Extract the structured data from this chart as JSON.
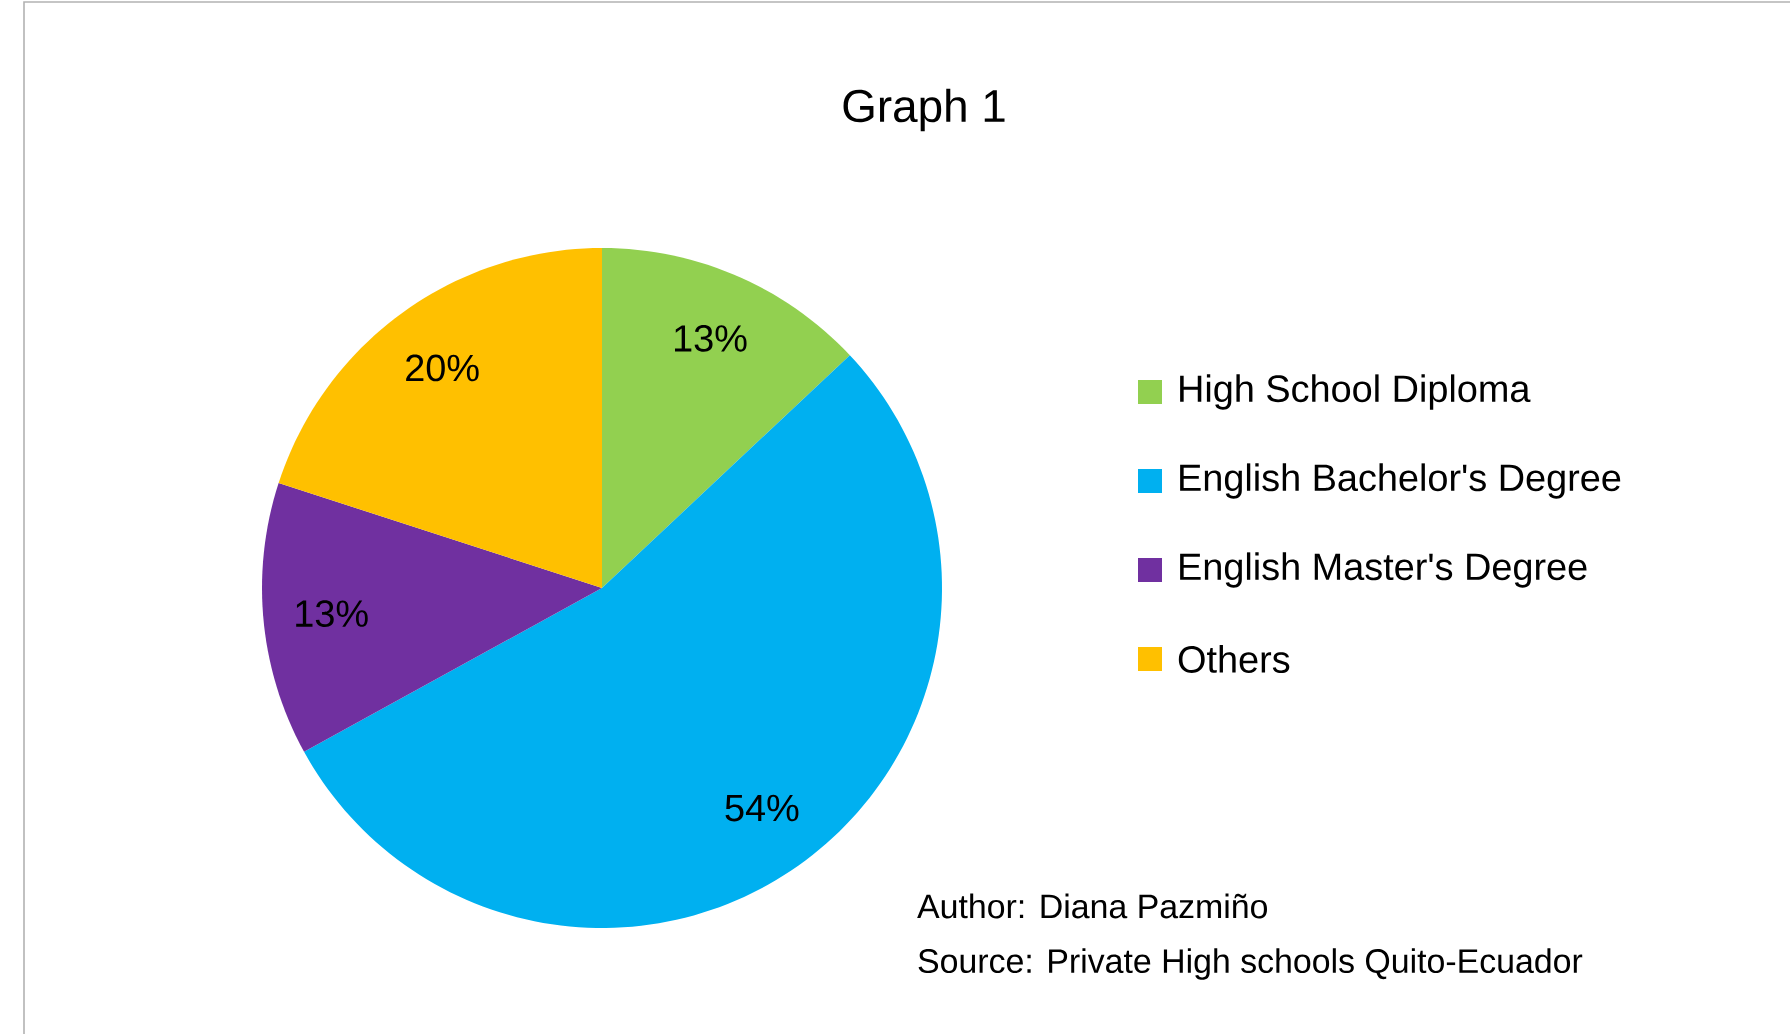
{
  "chart_data": {
    "type": "pie",
    "title": "Graph 1",
    "categories": [
      "High School Diploma",
      "English Bachelor's Degree",
      "English Master's Degree",
      "Others"
    ],
    "values": [
      13,
      54,
      13,
      20
    ],
    "colors": [
      "#92d050",
      "#00b0f0",
      "#7030a0",
      "#ffc000"
    ],
    "value_labels": [
      "13%",
      "54%",
      "13%",
      "20%"
    ],
    "legend": "right",
    "annotations": [
      "Author: Diana Pazmiño",
      "Source: Private High schools Quito-Ecuador"
    ]
  }
}
